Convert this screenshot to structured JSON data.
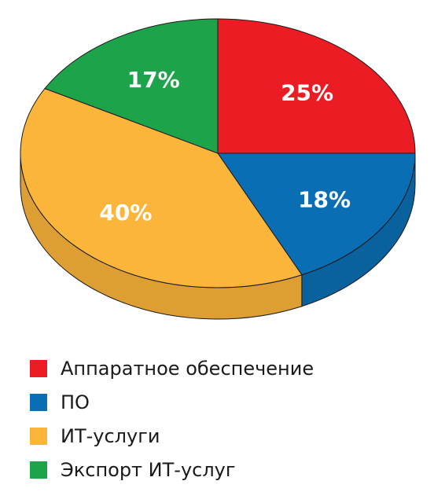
{
  "chart_data": {
    "type": "pie",
    "slices": [
      {
        "label": "Аппаратное обеспечение",
        "value": 25,
        "value_label": "25%",
        "color": "#ec1c24"
      },
      {
        "label": "ПО",
        "value": 18,
        "value_label": "18%",
        "color": "#0a6eb4"
      },
      {
        "label": "ИТ-услуги",
        "value": 40,
        "value_label": "40%",
        "color": "#fbb53a"
      },
      {
        "label": "Экспорт ИТ-услуг",
        "value": 17,
        "value_label": "17%",
        "color": "#1da34a"
      }
    ],
    "style": "3d",
    "legend_position": "bottom-left"
  },
  "legend": {
    "items": [
      {
        "label": "Аппаратное обеспечение",
        "color": "#ec1c24"
      },
      {
        "label": "ПО",
        "color": "#0a6eb4"
      },
      {
        "label": "ИТ-услуги",
        "color": "#fbb53a"
      },
      {
        "label": "Экспорт ИТ-услуг",
        "color": "#1da34a"
      }
    ]
  }
}
